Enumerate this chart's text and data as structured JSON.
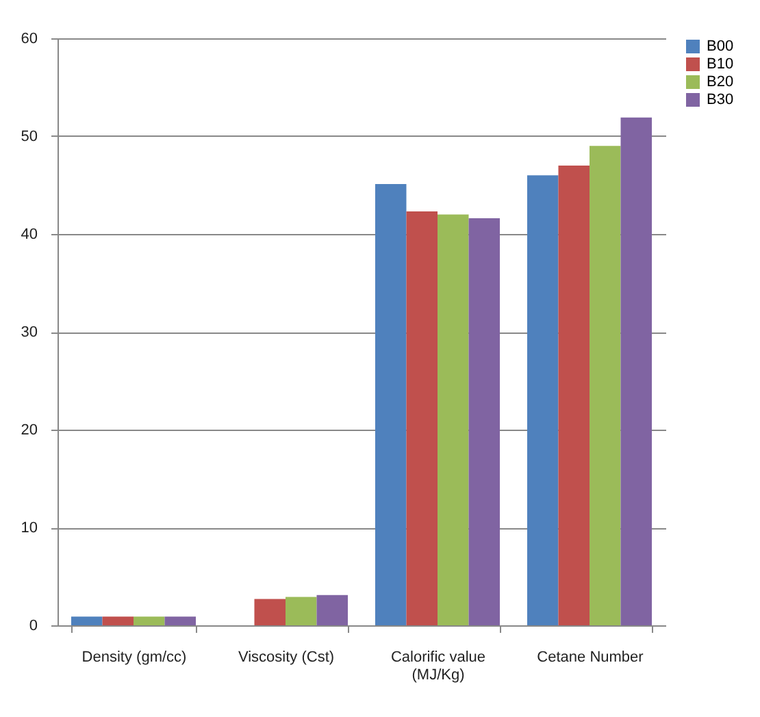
{
  "chart_data": {
    "type": "bar",
    "categories": [
      "Density (gm/cc)",
      "Viscosity (Cst)",
      "Calorific value (MJ/Kg)",
      "Cetane Number"
    ],
    "series": [
      {
        "name": "B00",
        "color": "#4f81bd",
        "values": [
          0.9,
          null,
          45.1,
          46
        ]
      },
      {
        "name": "B10",
        "color": "#c0504d",
        "values": [
          0.9,
          2.7,
          42.3,
          47
        ]
      },
      {
        "name": "B20",
        "color": "#9bbb59",
        "values": [
          0.9,
          2.9,
          42.0,
          49
        ]
      },
      {
        "name": "B30",
        "color": "#8064a2",
        "values": [
          0.9,
          3.1,
          41.6,
          51.9
        ]
      }
    ],
    "ylim": [
      0,
      60
    ],
    "yticks": [
      0,
      10,
      20,
      30,
      40,
      50,
      60
    ],
    "grid": "y",
    "legend": "right"
  }
}
